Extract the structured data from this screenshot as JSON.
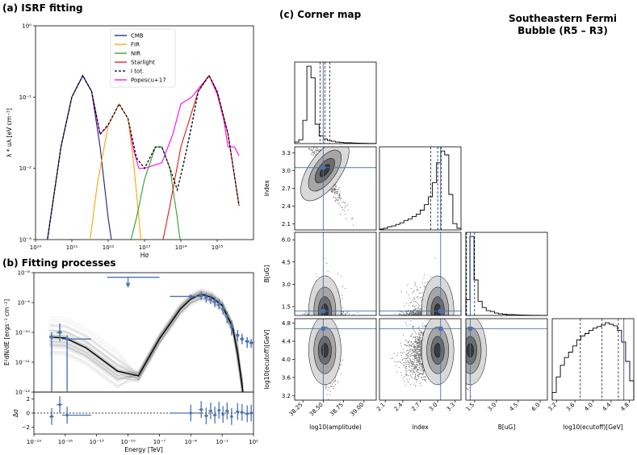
{
  "figure_title": [
    "Southeastern Fermi",
    "Bubble (R5 – R3)"
  ],
  "colors": {
    "cmb": "#1f1f7a",
    "fir": "#ffa500",
    "nir": "#2ca02c",
    "star": "#e41a1c",
    "total": "#000000",
    "popescu": "#ff00ff",
    "fit": "#4a72b0"
  },
  "chart_data": [
    {
      "id": "isrf",
      "type": "line",
      "title": "(a) ISRF fitting",
      "xlabel": "Hσ",
      "ylabel": "λ * uλ [eV cm⁻³]",
      "xscale": "log",
      "yscale": "log",
      "xlim": [
        10000000000.0,
        1e+16
      ],
      "ylim": [
        0.001,
        1
      ],
      "xticks": [
        "10¹⁰",
        "10¹¹",
        "10¹²",
        "10¹³",
        "10¹⁴",
        "10¹⁵"
      ],
      "yticks": [
        "10⁻³",
        "10⁻²",
        "10⁻¹",
        "10⁰"
      ],
      "legend": [
        "CMB",
        "FIR",
        "NIR",
        "Starlight",
        "I tot.",
        "Popescu+17"
      ],
      "series": [
        {
          "name": "CMB",
          "x": [
            20000000000.0,
            50000000000.0,
            100000000000.0,
            200000000000.0,
            350000000000.0,
            600000000000.0,
            1000000000000.0,
            1500000000000.0
          ],
          "y": [
            0.0008,
            0.02,
            0.1,
            0.2,
            0.12,
            0.02,
            0.002,
            0.0005
          ]
        },
        {
          "name": "FIR",
          "x": [
            300000000000.0,
            500000000000.0,
            1000000000000.0,
            2000000000000.0,
            3500000000000.0,
            5000000000000.0,
            7000000000000.0,
            10000000000000.0
          ],
          "y": [
            0.0008,
            0.006,
            0.04,
            0.08,
            0.05,
            0.012,
            0.002,
            0.0003
          ]
        },
        {
          "name": "NIR",
          "x": [
            3000000000000.0,
            6000000000000.0,
            10000000000000.0,
            20000000000000.0,
            30000000000000.0,
            50000000000000.0,
            80000000000000.0,
            120000000000000.0
          ],
          "y": [
            0.0005,
            0.002,
            0.007,
            0.02,
            0.02,
            0.01,
            0.002,
            0.0004
          ]
        },
        {
          "name": "Starlight",
          "x": [
            20000000000000.0,
            50000000000000.0,
            100000000000000.0,
            300000000000000.0,
            600000000000000.0,
            1000000000000000.0,
            2000000000000000.0,
            4000000000000000.0
          ],
          "y": [
            0.0003,
            0.003,
            0.02,
            0.12,
            0.2,
            0.12,
            0.03,
            0.003
          ]
        },
        {
          "name": "I tot.",
          "x": [
            20000000000.0,
            50000000000.0,
            100000000000.0,
            200000000000.0,
            350000000000.0,
            600000000000.0,
            1000000000000.0,
            1500000000000.0,
            2000000000000.0,
            3500000000000.0,
            6000000000000.0,
            10000000000000.0,
            20000000000000.0,
            30000000000000.0,
            50000000000000.0,
            80000000000000.0,
            120000000000000.0,
            200000000000000.0,
            300000000000000.0,
            600000000000000.0,
            1000000000000000.0,
            2000000000000000.0,
            4000000000000000.0
          ],
          "y": [
            0.0008,
            0.02,
            0.1,
            0.2,
            0.12,
            0.03,
            0.041,
            0.06,
            0.08,
            0.05,
            0.014,
            0.01,
            0.02,
            0.02,
            0.01,
            0.005,
            0.012,
            0.04,
            0.12,
            0.2,
            0.12,
            0.03,
            0.003
          ]
        },
        {
          "name": "Popescu+17",
          "x": [
            20000000000.0,
            50000000000.0,
            100000000000.0,
            200000000000.0,
            350000000000.0,
            600000000000.0,
            1000000000000.0,
            2000000000000.0,
            3500000000000.0,
            5000000000000.0,
            7000000000000.0,
            10000000000000.0,
            30000000000000.0,
            60000000000000.0,
            100000000000000.0,
            200000000000000.0,
            300000000000000.0,
            600000000000000.0,
            1000000000000000.0,
            1500000000000000.0,
            2000000000000000.0,
            3000000000000000.0,
            4000000000000000.0
          ],
          "y": [
            0.0008,
            0.02,
            0.1,
            0.2,
            0.12,
            0.03,
            0.04,
            0.08,
            0.05,
            0.018,
            0.01,
            0.01,
            0.012,
            0.03,
            0.08,
            0.1,
            0.13,
            0.2,
            0.11,
            0.05,
            0.02,
            0.02,
            0.015
          ]
        }
      ]
    },
    {
      "id": "fitting",
      "type": "scatter",
      "title": "(b) Fitting processes",
      "xlabel": "Energy [TeV]",
      "ylabel": "E²dN/dE [ergs⁻¹ cm⁻²]",
      "resid_label": "Δσ",
      "xscale": "log",
      "yscale": "log",
      "xlim": [
        1e-19,
        100
      ],
      "ylim": [
        1e-12,
        1e-08
      ],
      "xticks": [
        "10⁻¹⁹",
        "10⁻¹⁶",
        "10⁻¹³",
        "10⁻¹⁰",
        "10⁻⁷",
        "10⁻⁴",
        "10⁻¹",
        "10²"
      ],
      "yticks": [
        "10⁻¹²",
        "10⁻¹¹",
        "10⁻¹⁰",
        "10⁻⁹",
        "10⁻⁸"
      ],
      "resid_yticks": [
        "2",
        "0",
        "−2"
      ],
      "resid_ylim": [
        -3,
        3
      ],
      "model": {
        "x": [
          3e-18,
          1e-16,
          1e-14,
          1e-11,
          1e-09,
          1e-07,
          1e-05,
          0.0001,
          0.001,
          0.01,
          0.1,
          1,
          3,
          10
        ],
        "y": [
          7e-11,
          6.5e-11,
          3e-11,
          5e-12,
          3.5e-12,
          6e-11,
          6e-10,
          1.3e-09,
          1.9e-09,
          1.5e-09,
          8e-10,
          1.5e-10,
          2e-11,
          1e-12
        ]
      },
      "points": [
        {
          "x": 5e-18,
          "y": 7e-11,
          "xlo": 3e-18,
          "xhi": 8e-18,
          "ylo": 1e-12,
          "yhi": 1e-10,
          "res": -0.5
        },
        {
          "x": 3e-17,
          "y": 1e-10,
          "xlo": 1.5e-17,
          "xhi": 5e-17,
          "ylo": 5e-11,
          "yhi": 2e-10,
          "res": 1.2
        },
        {
          "x": 1.5e-16,
          "y": 6e-11,
          "xlo": 5e-17,
          "xhi": 3e-14,
          "ylo": 1e-12,
          "yhi": 8e-11,
          "res": -0.3
        },
        {
          "x": 1e-10,
          "y": 7e-09,
          "xlo": 1e-12,
          "xhi": 1e-07,
          "ylo": 4e-09,
          "yhi": 7e-09,
          "res": null,
          "upper": true
        },
        {
          "x": 0.0001,
          "y": 1.6e-09,
          "xlo": 1e-06,
          "xhi": 0.001,
          "ylo": 1.4e-09,
          "yhi": 1.8e-09,
          "res": 0
        },
        {
          "x": 0.001,
          "y": 1.7e-09,
          "xlo": 0.0006,
          "xhi": 0.0016,
          "ylo": 1.2e-09,
          "yhi": 2.3e-09,
          "res": 0.5
        },
        {
          "x": 0.003,
          "y": 1.5e-09,
          "xlo": 0.002,
          "xhi": 0.0045,
          "ylo": 1e-09,
          "yhi": 2e-09,
          "res": -0.4
        },
        {
          "x": 0.008,
          "y": 1.3e-09,
          "xlo": 0.005,
          "xhi": 0.012,
          "ylo": 9e-10,
          "yhi": 1.8e-09,
          "res": 0.3
        },
        {
          "x": 0.02,
          "y": 1.1e-09,
          "xlo": 0.013,
          "xhi": 0.03,
          "ylo": 7e-10,
          "yhi": 1.5e-09,
          "res": -0.3
        },
        {
          "x": 0.05,
          "y": 9e-10,
          "xlo": 0.035,
          "xhi": 0.07,
          "ylo": 6e-10,
          "yhi": 1.3e-09,
          "res": 0.4
        },
        {
          "x": 0.12,
          "y": 6e-10,
          "xlo": 0.09,
          "xhi": 0.17,
          "ylo": 4e-10,
          "yhi": 9e-10,
          "res": -0.2
        },
        {
          "x": 0.3,
          "y": 3.5e-10,
          "xlo": 0.2,
          "xhi": 0.45,
          "ylo": 2e-10,
          "yhi": 5e-10,
          "res": 0.3
        },
        {
          "x": 0.8,
          "y": 1.5e-10,
          "xlo": 0.6,
          "xhi": 1.1,
          "ylo": 8e-11,
          "yhi": 2.5e-10,
          "res": -0.5
        },
        {
          "x": 3,
          "y": 8e-11,
          "xlo": 2,
          "xhi": 4.5,
          "ylo": 5e-11,
          "yhi": 1.2e-10,
          "res": 0.2
        },
        {
          "x": 8,
          "y": 6e-11,
          "xlo": 5,
          "xhi": 12,
          "ylo": 4e-11,
          "yhi": 9e-11,
          "res": 0.1
        },
        {
          "x": 25,
          "y": 5e-11,
          "xlo": 15,
          "xhi": 40,
          "ylo": 3e-11,
          "yhi": 7e-11,
          "res": -0.1
        },
        {
          "x": 60,
          "y": 4.5e-11,
          "xlo": 40,
          "xhi": 90,
          "ylo": 3e-11,
          "yhi": 6e-11,
          "res": 0
        }
      ]
    },
    {
      "id": "corner",
      "type": "scatter",
      "title": "(c) Corner map",
      "params": [
        {
          "name": "log10(amplitude)",
          "lim": [
            38.15,
            39.15
          ],
          "ticks": [
            "38.25",
            "38.50",
            "38.75",
            "39.00"
          ],
          "tickvals": [
            38.25,
            38.5,
            38.75,
            39.0
          ],
          "truth": 38.5,
          "median": 38.52,
          "q": [
            38.46,
            38.58
          ],
          "hist": [
            0.02,
            0.05,
            0.3,
            1.0,
            0.85,
            0.25,
            0.1,
            0.06,
            0.04,
            0.03,
            0.02,
            0.015,
            0.01,
            0.01,
            0.008,
            0.005,
            0.004,
            0.003,
            0.002,
            0.002
          ]
        },
        {
          "name": "index",
          "lim": [
            2.0,
            3.4
          ],
          "ticks": [
            "2.1",
            "2.4",
            "2.7",
            "3.0",
            "3.3"
          ],
          "tickvals": [
            2.1,
            2.4,
            2.7,
            3.0,
            3.3
          ],
          "truth": 3.05,
          "median": 3.0,
          "q": [
            2.88,
            3.06
          ],
          "hist": [
            0.01,
            0.02,
            0.04,
            0.05,
            0.07,
            0.09,
            0.12,
            0.14,
            0.17,
            0.2,
            0.25,
            0.32,
            0.42,
            0.6,
            0.85,
            1.0,
            0.95,
            0.45,
            0.08,
            0.02
          ]
        },
        {
          "name": "B[uG]",
          "lim": [
            0.9,
            6.5
          ],
          "ticks": [
            "1.5",
            "3.0",
            "4.5",
            "6.0"
          ],
          "tickvals": [
            1.5,
            3.0,
            4.5,
            6.0
          ],
          "truth": 1.2,
          "median": 1.2,
          "q": [
            0.95,
            1.5
          ],
          "hist": [
            0.2,
            1.0,
            0.45,
            0.18,
            0.1,
            0.06,
            0.05,
            0.03,
            0.02,
            0.015,
            0.01,
            0.01,
            0.008,
            0.005,
            0.004,
            0.003,
            0.002,
            0.002,
            0.001,
            0.001
          ]
        },
        {
          "name": "log10(ecutoff)[GeV]",
          "lim": [
            3.1,
            4.9
          ],
          "ticks": [
            "3.2",
            "3.6",
            "4.0",
            "4.4",
            "4.8"
          ],
          "tickvals": [
            3.2,
            3.6,
            4.0,
            4.4,
            4.8
          ],
          "truth": 4.68,
          "median": 4.2,
          "q": [
            3.72,
            4.56
          ],
          "hist": [
            0.1,
            0.3,
            0.45,
            0.55,
            0.62,
            0.7,
            0.78,
            0.83,
            0.86,
            0.9,
            0.93,
            0.95,
            0.97,
            1.0,
            0.98,
            0.96,
            0.9,
            0.75,
            0.5,
            0.25
          ]
        }
      ]
    }
  ]
}
